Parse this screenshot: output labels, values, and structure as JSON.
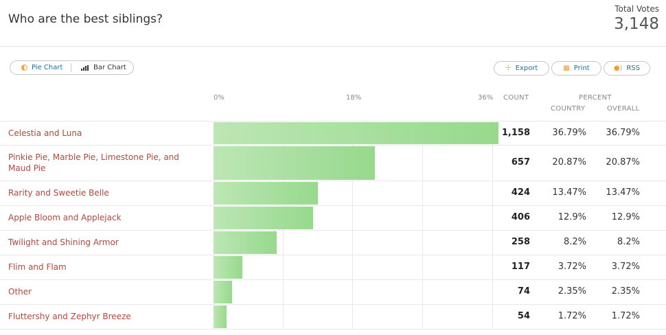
{
  "poll": {
    "question": "Who are the best siblings?",
    "total_votes_label": "Total Votes",
    "total_votes": "3,148"
  },
  "toolbar": {
    "pie_label": "Pie Chart",
    "bar_label": "Bar Chart",
    "export_label": "Export",
    "print_label": "Print",
    "rss_label": "RSS"
  },
  "columns": {
    "count": "COUNT",
    "percent": "PERCENT",
    "country": "COUNTRY",
    "overall": "OVERALL"
  },
  "colors": {
    "bar": "#a6dd9c",
    "label": "#b5473c",
    "link": "#1f6fa8",
    "icon": "#f39c34"
  },
  "chart_data": {
    "type": "bar",
    "orientation": "horizontal",
    "title": "Who are the best siblings?",
    "x_ticks": [
      "0%",
      "18%",
      "36%"
    ],
    "xlim": [
      0,
      36
    ],
    "categories": [
      "Celestia and Luna",
      "Pinkie Pie, Marble Pie, Limestone Pie, and Maud Pie",
      "Rarity and Sweetie Belle",
      "Apple Bloom and Applejack",
      "Twilight and Shining Armor",
      "Flim and Flam",
      "Other",
      "Fluttershy and Zephyr Breeze"
    ],
    "counts": [
      "1,158",
      "657",
      "424",
      "406",
      "258",
      "117",
      "74",
      "54"
    ],
    "values": [
      36.79,
      20.87,
      13.47,
      12.9,
      8.2,
      3.72,
      2.35,
      1.72
    ],
    "percent_country": [
      "36.79%",
      "20.87%",
      "13.47%",
      "12.9%",
      "8.2%",
      "3.72%",
      "2.35%",
      "1.72%"
    ],
    "percent_overall": [
      "36.79%",
      "20.87%",
      "13.47%",
      "12.9%",
      "8.2%",
      "3.72%",
      "2.35%",
      "1.72%"
    ]
  }
}
